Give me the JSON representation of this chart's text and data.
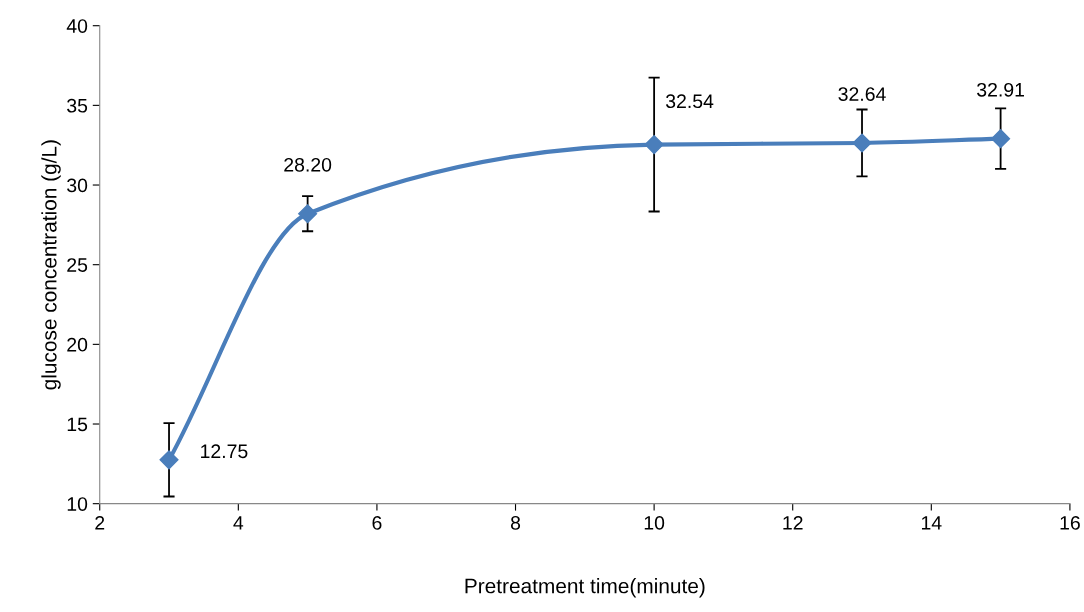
{
  "chart_data": {
    "type": "line",
    "xlabel": "Pretreatment time(minute)",
    "ylabel": "glucose concentration (g/L)",
    "x": [
      3,
      5,
      10,
      13,
      15
    ],
    "series": [
      {
        "color": "#4a7ebb",
        "values": [
          12.75,
          28.2,
          32.54,
          32.64,
          32.91
        ],
        "errors": [
          2.3,
          1.1,
          4.2,
          2.1,
          1.9
        ],
        "value_labels": [
          "12.75",
          "28.20",
          "32.54",
          "32.64",
          "32.91"
        ]
      }
    ],
    "xlim": [
      2,
      16
    ],
    "xticks": [
      2,
      4,
      6,
      8,
      10,
      12,
      14,
      16
    ],
    "ylim": [
      10,
      40
    ],
    "yticks": [
      10,
      15,
      20,
      25,
      30,
      35,
      40
    ],
    "grid": false,
    "marker": "diamond",
    "line_style": "solid"
  }
}
